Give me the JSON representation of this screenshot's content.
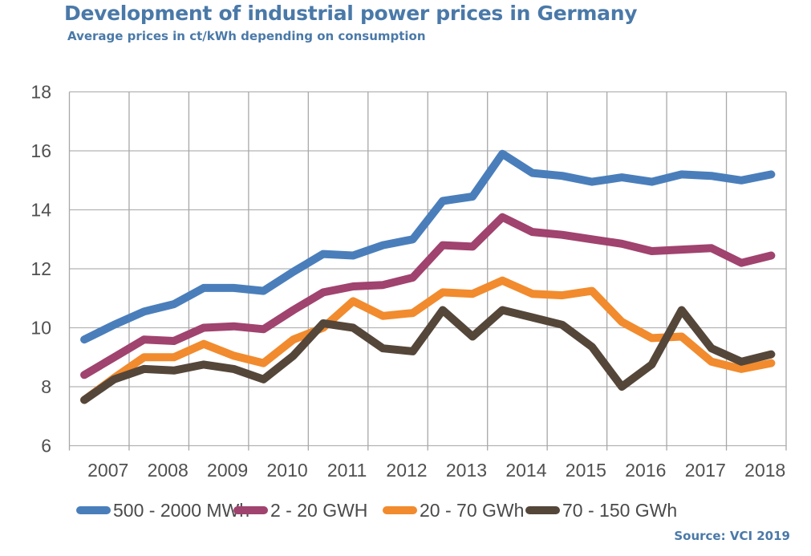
{
  "chart_data": {
    "type": "line",
    "title": "Development of industrial power prices in Germany",
    "subtitle": "Average prices in ct/kWh depending on consumption",
    "xlabel": "",
    "ylabel": "",
    "ylim": [
      6,
      18
    ],
    "yticks": [
      6,
      8,
      10,
      12,
      14,
      16,
      18
    ],
    "categories": [
      "2007",
      "2008",
      "2009",
      "2010",
      "2011",
      "2012",
      "2013",
      "2014",
      "2015",
      "2016",
      "2017",
      "2018"
    ],
    "points_per_category": 2,
    "grid": true,
    "legend_position": "bottom",
    "series": [
      {
        "name": "500 - 2000 MWh",
        "color": "#4a7ebb",
        "values": [
          9.6,
          10.1,
          10.55,
          10.8,
          11.35,
          11.35,
          11.25,
          11.9,
          12.5,
          12.45,
          12.8,
          13.0,
          14.3,
          14.45,
          15.9,
          15.25,
          15.15,
          14.95,
          15.1,
          14.95,
          15.2,
          15.15,
          15.0,
          15.2
        ]
      },
      {
        "name": "2 - 20 GWH",
        "color": "#a0436e",
        "values": [
          8.4,
          9.0,
          9.6,
          9.55,
          10.0,
          10.05,
          9.95,
          10.6,
          11.2,
          11.4,
          11.45,
          11.7,
          12.8,
          12.75,
          13.75,
          13.25,
          13.15,
          13.0,
          12.85,
          12.6,
          12.65,
          12.7,
          12.2,
          12.45
        ]
      },
      {
        "name": "20 - 70 GWh",
        "color": "#f18b2e",
        "values": [
          7.55,
          8.3,
          9.0,
          9.0,
          9.45,
          9.05,
          8.8,
          9.6,
          10.0,
          10.9,
          10.4,
          10.5,
          11.2,
          11.15,
          11.6,
          11.15,
          11.1,
          11.25,
          10.2,
          9.65,
          9.7,
          8.85,
          8.6,
          8.8
        ]
      },
      {
        "name": "70 - 150 GWh",
        "color": "#55463a",
        "values": [
          7.55,
          8.25,
          8.6,
          8.55,
          8.75,
          8.6,
          8.25,
          9.05,
          10.15,
          10.0,
          9.3,
          9.2,
          10.6,
          9.7,
          10.6,
          10.35,
          10.1,
          9.35,
          8.0,
          8.75,
          10.6,
          9.3,
          8.85,
          9.1
        ]
      }
    ],
    "source": "Source: VCI 2019"
  }
}
